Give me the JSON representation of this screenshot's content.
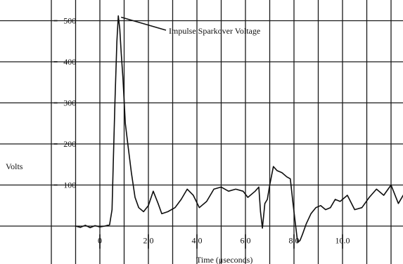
{
  "chart_data": {
    "type": "line",
    "title": "",
    "xlabel": "Time (μseconds)",
    "ylabel": "Volts",
    "xlim": [
      -1.0,
      13.0
    ],
    "ylim": [
      -100,
      530
    ],
    "x_ticks": [
      0,
      2.0,
      4.0,
      6.0,
      8.0,
      10.0
    ],
    "x_tick_labels": [
      "0",
      "2.0",
      "4.0",
      "6.0",
      "8.0",
      "10.0"
    ],
    "y_ticks": [
      100,
      200,
      300,
      400,
      500
    ],
    "y_tick_labels": [
      "100",
      "200",
      "300",
      "400",
      "500"
    ],
    "grid": true,
    "annotation": {
      "text": "Impulse Sparkover Voltage",
      "x": 0.76,
      "y": 512
    },
    "series": [
      {
        "x": [
          -1.0,
          -0.8,
          -0.6,
          -0.4,
          -0.2,
          0.0,
          0.2,
          0.4,
          0.5,
          0.55,
          0.62,
          0.7,
          0.76,
          0.82,
          0.88,
          0.95,
          1.05,
          1.15,
          1.3,
          1.45,
          1.6,
          1.8,
          2.0,
          2.2,
          2.4,
          2.55,
          2.8,
          3.1,
          3.35,
          3.6,
          3.85,
          4.1,
          4.4,
          4.7,
          5.0,
          5.3,
          5.6,
          5.9,
          6.1,
          6.4,
          6.55,
          6.62,
          6.7,
          6.8,
          6.9,
          7.0,
          7.15,
          7.3,
          7.5,
          7.7,
          7.85,
          7.95,
          8.05,
          8.15,
          8.25,
          8.35,
          8.5,
          8.7,
          8.9,
          9.1,
          9.3,
          9.5,
          9.7,
          9.9,
          10.2,
          10.5,
          10.8,
          11.1,
          11.4,
          11.7,
          12.0,
          12.3,
          12.6,
          12.9,
          13.0
        ],
        "y": [
          0,
          -3,
          2,
          -4,
          1,
          -2,
          0,
          3,
          40,
          150,
          300,
          450,
          512,
          480,
          420,
          360,
          250,
          200,
          130,
          70,
          45,
          35,
          50,
          85,
          55,
          30,
          35,
          45,
          65,
          90,
          75,
          45,
          60,
          90,
          95,
          85,
          90,
          85,
          70,
          85,
          95,
          35,
          -5,
          55,
          65,
          100,
          145,
          135,
          130,
          120,
          115,
          60,
          10,
          -40,
          -35,
          -20,
          5,
          30,
          45,
          50,
          40,
          45,
          65,
          60,
          75,
          40,
          45,
          70,
          90,
          75,
          100,
          55,
          85,
          70,
          65
        ]
      }
    ]
  }
}
